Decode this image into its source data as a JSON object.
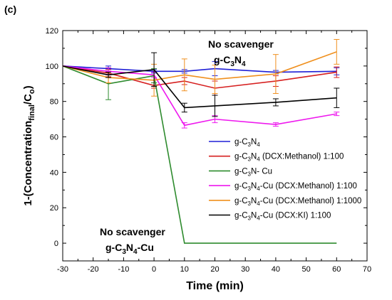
{
  "chart_data": {
    "type": "line",
    "panel_label": "(c)",
    "xlabel": "Time (min)",
    "ylabel": {
      "pre": "1-(Concentration",
      "sub1": "final",
      "mid": "/C",
      "sub2": "o",
      "post": ")"
    },
    "xlim": [
      -30,
      70
    ],
    "ylim": [
      -10,
      120
    ],
    "x_ticks": [
      -30,
      -20,
      -10,
      0,
      10,
      20,
      30,
      40,
      50,
      60,
      70
    ],
    "y_ticks": [
      0,
      20,
      40,
      60,
      80,
      100,
      120
    ],
    "grid": false,
    "legend_position": "right",
    "annotations": [
      {
        "id": "top",
        "line1": "No scavenger",
        "line2": {
          "a": "g-C",
          "b": "3",
          "c": "N",
          "d": "4",
          "e": ""
        }
      },
      {
        "id": "bottom",
        "line1": "No scavenger",
        "line2": {
          "a": "g-C",
          "b": "3",
          "c": "N",
          "d": "4",
          "e": "-Cu"
        }
      }
    ],
    "series": [
      {
        "name": "g-C3N4",
        "label": {
          "a": "g-C",
          "b": "3",
          "c": "N",
          "d": "4",
          "e": ""
        },
        "color": "#1f1fd6",
        "x": [
          -30,
          -15,
          0,
          10,
          20,
          40,
          60
        ],
        "y": [
          100,
          98.5,
          97,
          97,
          98.5,
          96.5,
          97
        ],
        "err": [
          0,
          1.5,
          1,
          1,
          4,
          1,
          2
        ]
      },
      {
        "name": "g-C3N4 (DCX:Methanol) 1:100",
        "label": {
          "a": "g-C",
          "b": "3",
          "c": "N",
          "d": "4",
          "e": " (DCX:Methanol) 1:100"
        },
        "color": "#d62020",
        "x": [
          -30,
          -15,
          0,
          10,
          20,
          40,
          60
        ],
        "y": [
          100,
          96,
          89,
          91.5,
          87.5,
          91.5,
          96.5
        ],
        "err": [
          0,
          2,
          1.5,
          2,
          4,
          3,
          3
        ]
      },
      {
        "name": "g-C3N- Cu",
        "label": {
          "a": "g-C",
          "b": "3",
          "c": "N- Cu",
          "d": "",
          "e": ""
        },
        "color": "#2e8b2e",
        "x": [
          -30,
          -15,
          0,
          10,
          20,
          40,
          60
        ],
        "y": [
          100,
          90,
          94.5,
          0,
          0,
          0,
          0
        ],
        "err": [
          0,
          9,
          4,
          0,
          0,
          0,
          0
        ]
      },
      {
        "name": "g-C3N4-Cu (DCX:Methanol) 1:100",
        "label": {
          "a": "g-C",
          "b": "3",
          "c": "N",
          "d": "4",
          "e": "-Cu (DCX:Methanol) 1:100"
        },
        "color": "#ee18ee",
        "x": [
          -30,
          -15,
          0,
          10,
          20,
          40,
          60
        ],
        "y": [
          100,
          97,
          95,
          66.5,
          70,
          67,
          73
        ],
        "err": [
          0,
          2,
          1.5,
          1.5,
          2,
          1,
          1
        ]
      },
      {
        "name": "g-C3N4-Cu (DCX:Methanol) 1:1000",
        "label": {
          "a": "g-C",
          "b": "3",
          "c": "N",
          "d": "4",
          "e": "-Cu (DCX:Methanol) 1:1000"
        },
        "color": "#f0901e",
        "x": [
          -30,
          -15,
          0,
          10,
          20,
          40,
          60
        ],
        "y": [
          100,
          93.5,
          92,
          95,
          92.5,
          95.5,
          108
        ],
        "err": [
          0,
          3,
          9,
          9,
          8,
          11,
          7
        ]
      },
      {
        "name": "g-C3N4-Cu (DCX:KI) 1:100",
        "label": {
          "a": "g-C",
          "b": "3",
          "c": "N",
          "d": "4",
          "e": "-Cu (DCX:KI) 1:100"
        },
        "color": "#000000",
        "x": [
          -30,
          -15,
          0,
          10,
          20,
          40,
          60
        ],
        "y": [
          100,
          95,
          98,
          76.5,
          77.5,
          79.5,
          82
        ],
        "err": [
          0,
          1.5,
          9.5,
          2.5,
          6,
          2,
          5.5
        ]
      }
    ]
  }
}
